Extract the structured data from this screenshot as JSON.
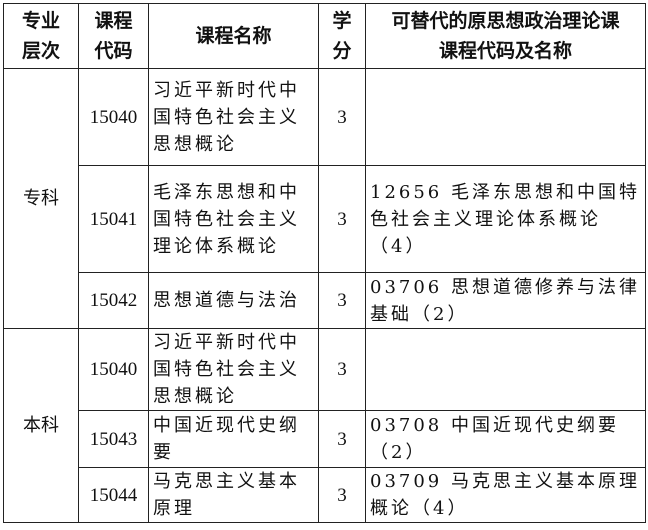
{
  "header": {
    "level": [
      "专业",
      "层次"
    ],
    "code": [
      "课程",
      "代码"
    ],
    "name": "课程名称",
    "credit": [
      "学",
      "分"
    ],
    "replace": [
      "可替代的原思想政治理论课",
      "课程代码及名称"
    ]
  },
  "groups": [
    {
      "level": "专科"
    },
    {
      "level": "本科"
    }
  ],
  "rows": [
    {
      "code": "15040",
      "name": [
        "习近平新时代中",
        "国特色社会主义",
        "思想概论"
      ],
      "credit": "3",
      "replace": []
    },
    {
      "code": "15041",
      "name": [
        "毛泽东思想和中",
        "国特色社会主义",
        "理论体系概论"
      ],
      "credit": "3",
      "replace": [
        "12656 毛泽东思想和中国特",
        "色社会主义理论体系概论",
        "（4）"
      ]
    },
    {
      "code": "15042",
      "name": [
        "思想道德与法治"
      ],
      "credit": "3",
      "replace": [
        "03706 思想道德修养与法律",
        "基础（2）"
      ]
    },
    {
      "code": "15040",
      "name": [
        "习近平新时代中",
        "国特色社会主义",
        "思想概论"
      ],
      "credit": "3",
      "replace": []
    },
    {
      "code": "15043",
      "name": [
        "中国近现代史纲",
        "要"
      ],
      "credit": "3",
      "replace": [
        "03708 中国近现代史纲要（2）"
      ]
    },
    {
      "code": "15044",
      "name": [
        "马克思主义基本",
        "原理"
      ],
      "credit": "3",
      "replace": [
        "03709 马克思主义基本原理",
        "概论（4）"
      ]
    }
  ]
}
